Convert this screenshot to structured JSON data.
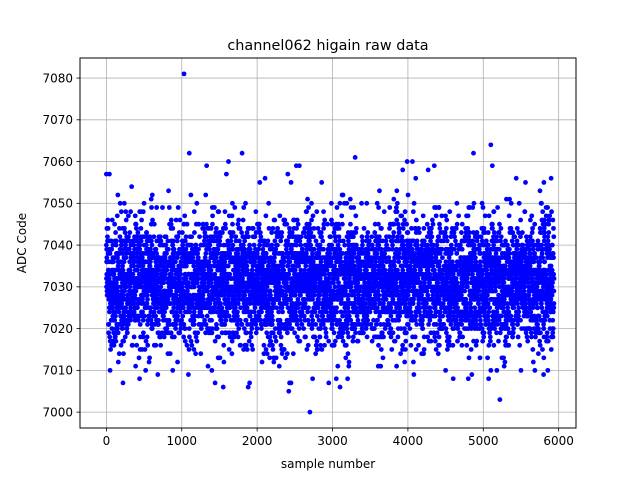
{
  "chart_data": {
    "type": "scatter",
    "title": "channel062 higain raw data",
    "xlabel": "sample number",
    "ylabel": "ADC Code",
    "xlim": [
      -350,
      6230
    ],
    "ylim": [
      6996.2,
      7084.8
    ],
    "xticks": [
      0,
      1000,
      2000,
      3000,
      4000,
      5000,
      6000
    ],
    "yticks": [
      7000,
      7010,
      7020,
      7030,
      7040,
      7050,
      7060,
      7070,
      7080
    ],
    "grid": true,
    "marker_color": "#0000ff",
    "series": [
      {
        "n_samples": 5940,
        "mean": 7031,
        "std": 7.5,
        "points": [
          [
            1030,
            7081
          ],
          [
            1100,
            7062
          ],
          [
            2700,
            7000
          ],
          [
            1800,
            7062
          ],
          [
            4870,
            7062
          ],
          [
            5100,
            7064
          ],
          [
            3300,
            7061
          ],
          [
            3990,
            7060
          ],
          [
            4060,
            7060
          ],
          [
            4350,
            7059
          ],
          [
            5120,
            7059
          ],
          [
            1330,
            7059
          ],
          [
            2520,
            7059
          ],
          [
            2560,
            7059
          ],
          [
            1620,
            7060
          ],
          [
            0,
            7057
          ],
          [
            40,
            7057
          ],
          [
            2450,
            7055
          ],
          [
            5560,
            7055
          ],
          [
            5900,
            7056
          ],
          [
            1550,
            7006
          ],
          [
            2420,
            7005
          ],
          [
            2430,
            7007
          ],
          [
            2950,
            7007
          ],
          [
            3100,
            7006
          ],
          [
            5220,
            7003
          ],
          [
            3050,
            7008
          ],
          [
            880,
            7010
          ],
          [
            4500,
            7010
          ],
          [
            5100,
            7010
          ],
          [
            5500,
            7010
          ],
          [
            5800,
            7009
          ],
          [
            220,
            7007
          ],
          [
            1900,
            7007
          ],
          [
            3200,
            7008
          ]
        ]
      }
    ]
  }
}
